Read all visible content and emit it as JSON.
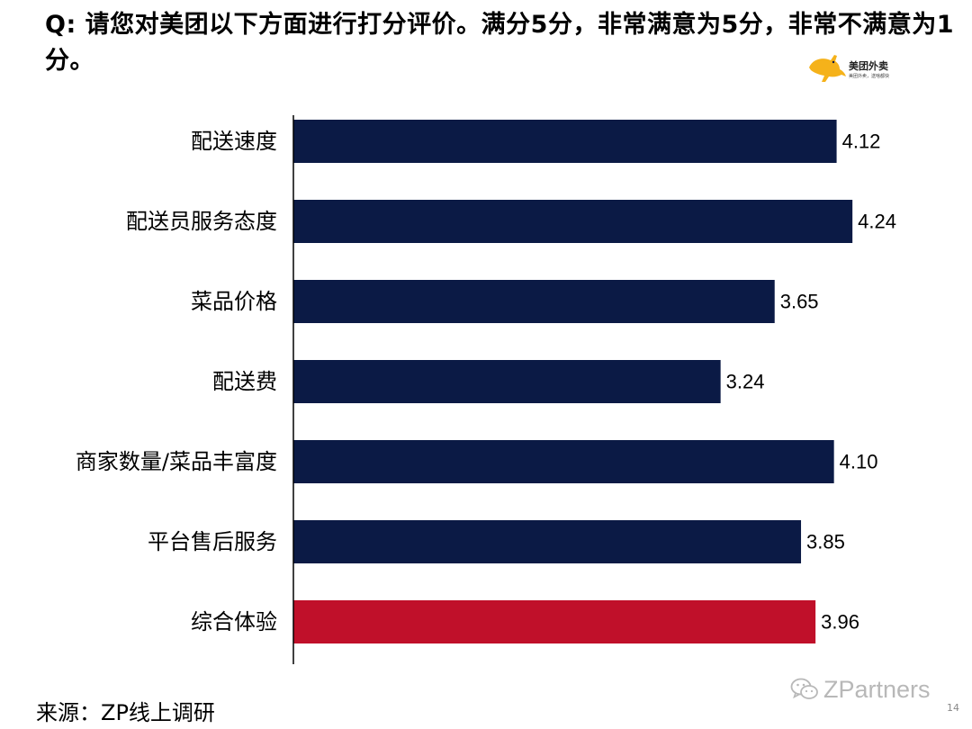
{
  "question": {
    "prefix": "Q:",
    "text": "请您对美团以下方面进行打分评价。满分5分，非常满意为5分，非常不满意为1分。"
  },
  "logo": {
    "name": "美团外卖",
    "slogan": "美团外卖，送啥都快",
    "icon": "kangaroo-icon",
    "color": "#F5B21A"
  },
  "colors": {
    "bar_default": "#0B1A45",
    "bar_highlight": "#C0102A",
    "axis": "#000000"
  },
  "chart_data": {
    "type": "bar",
    "orientation": "horizontal",
    "categories": [
      "配送速度",
      "配送员服务态度",
      "菜品价格",
      "配送费",
      "商家数量/菜品丰富度",
      "平台售后服务",
      "综合体验"
    ],
    "values": [
      4.12,
      4.24,
      3.65,
      3.24,
      4.1,
      3.85,
      3.96
    ],
    "value_labels": [
      "4.12",
      "4.24",
      "3.65",
      "3.24",
      "4.10",
      "3.85",
      "3.96"
    ],
    "highlight": [
      "综合体验"
    ],
    "xlim": [
      0,
      5
    ],
    "grid": false,
    "data_labels": true
  },
  "source": "来源：ZP线上调研",
  "watermark": {
    "text": "ZPartners",
    "icon": "wechat-icon"
  },
  "page_number": "14"
}
